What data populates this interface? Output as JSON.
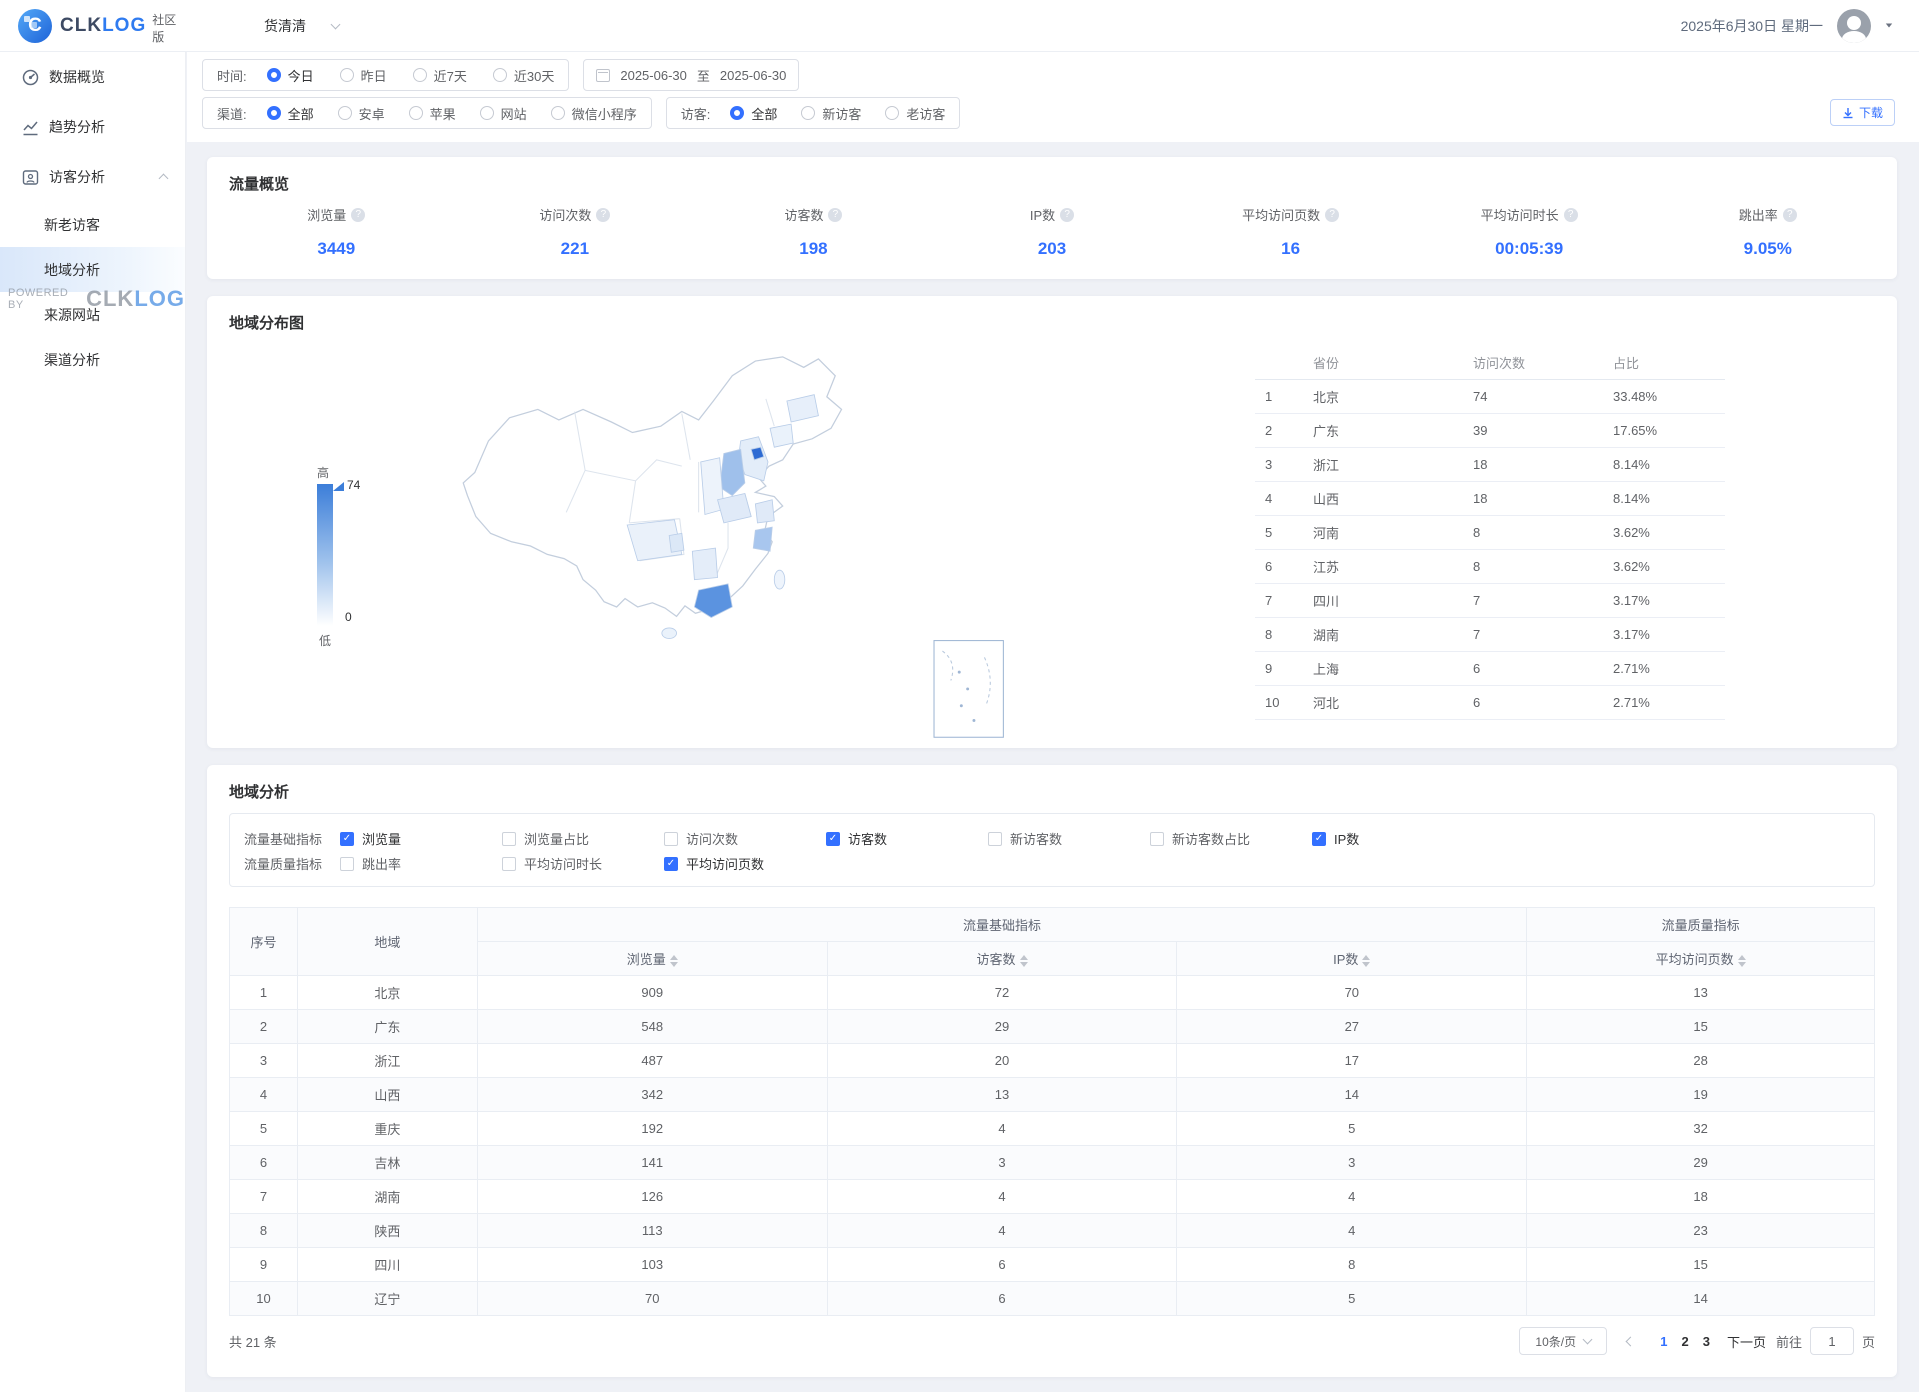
{
  "header": {
    "logo_text_1": "CLK",
    "logo_text_2": "LOG",
    "edition": "社区版",
    "project_selector": "货清清",
    "date_display": "2025年6月30日 星期一"
  },
  "sidebar": {
    "watermark_prefix": "POWERED BY",
    "watermark_logo_1": "CLK",
    "watermark_logo_2": "LOG",
    "items": [
      {
        "label": "数据概览"
      },
      {
        "label": "趋势分析"
      },
      {
        "label": "访客分析"
      },
      {
        "label": "新老访客"
      },
      {
        "label": "地域分析"
      },
      {
        "label": "来源网站"
      },
      {
        "label": "渠道分析"
      }
    ]
  },
  "filters": {
    "time": {
      "label": "时间:",
      "options": [
        {
          "label": "今日",
          "selected": true
        },
        {
          "label": "昨日",
          "selected": false
        },
        {
          "label": "近7天",
          "selected": false
        },
        {
          "label": "近30天",
          "selected": false
        }
      ]
    },
    "range": {
      "start": "2025-06-30",
      "to": "至",
      "end": "2025-06-30"
    },
    "channel": {
      "label": "渠道:",
      "options": [
        {
          "label": "全部",
          "selected": true
        },
        {
          "label": "安卓",
          "selected": false
        },
        {
          "label": "苹果",
          "selected": false
        },
        {
          "label": "网站",
          "selected": false
        },
        {
          "label": "微信小程序",
          "selected": false
        }
      ]
    },
    "visitor": {
      "label": "访客:",
      "options": [
        {
          "label": "全部",
          "selected": true
        },
        {
          "label": "新访客",
          "selected": false
        },
        {
          "label": "老访客",
          "selected": false
        }
      ]
    },
    "download_label": "下载"
  },
  "overview": {
    "title": "流量概览",
    "metrics": [
      {
        "label": "浏览量",
        "value": "3449"
      },
      {
        "label": "访问次数",
        "value": "221"
      },
      {
        "label": "访客数",
        "value": "198"
      },
      {
        "label": "IP数",
        "value": "203"
      },
      {
        "label": "平均访问页数",
        "value": "16"
      },
      {
        "label": "平均访问时长",
        "value": "00:05:39"
      },
      {
        "label": "跳出率",
        "value": "9.05%"
      }
    ]
  },
  "map_section": {
    "title": "地域分布图",
    "legend": {
      "high": "高",
      "low": "低",
      "max": "74",
      "min": "0"
    },
    "table": {
      "headers": [
        "省份",
        "访问次数",
        "占比"
      ],
      "rows": [
        [
          "1",
          "北京",
          "74",
          "33.48%"
        ],
        [
          "2",
          "广东",
          "39",
          "17.65%"
        ],
        [
          "3",
          "浙江",
          "18",
          "8.14%"
        ],
        [
          "4",
          "山西",
          "18",
          "8.14%"
        ],
        [
          "5",
          "河南",
          "8",
          "3.62%"
        ],
        [
          "6",
          "江苏",
          "8",
          "3.62%"
        ],
        [
          "7",
          "四川",
          "7",
          "3.17%"
        ],
        [
          "8",
          "湖南",
          "7",
          "3.17%"
        ],
        [
          "9",
          "上海",
          "6",
          "2.71%"
        ],
        [
          "10",
          "河北",
          "6",
          "2.71%"
        ]
      ]
    }
  },
  "analysis": {
    "title": "地域分析",
    "metric_groups": [
      {
        "label": "流量基础指标",
        "options": [
          {
            "label": "浏览量",
            "checked": true
          },
          {
            "label": "浏览量占比",
            "checked": false
          },
          {
            "label": "访问次数",
            "checked": false
          },
          {
            "label": "访客数",
            "checked": true
          },
          {
            "label": "新访客数",
            "checked": false
          },
          {
            "label": "新访客数占比",
            "checked": false
          },
          {
            "label": "IP数",
            "checked": true
          }
        ]
      },
      {
        "label": "流量质量指标",
        "options": [
          {
            "label": "跳出率",
            "checked": false
          },
          {
            "label": "平均访问时长",
            "checked": false
          },
          {
            "label": "平均访问页数",
            "checked": true
          }
        ]
      }
    ],
    "table": {
      "col_index": "序号",
      "col_region": "地域",
      "group_basic": "流量基础指标",
      "group_quality": "流量质量指标",
      "sub_headers": [
        "浏览量",
        "访客数",
        "IP数",
        "平均访问页数"
      ],
      "rows": [
        [
          "1",
          "北京",
          "909",
          "72",
          "70",
          "13"
        ],
        [
          "2",
          "广东",
          "548",
          "29",
          "27",
          "15"
        ],
        [
          "3",
          "浙江",
          "487",
          "20",
          "17",
          "28"
        ],
        [
          "4",
          "山西",
          "342",
          "13",
          "14",
          "19"
        ],
        [
          "5",
          "重庆",
          "192",
          "4",
          "5",
          "32"
        ],
        [
          "6",
          "吉林",
          "141",
          "3",
          "3",
          "29"
        ],
        [
          "7",
          "湖南",
          "126",
          "4",
          "4",
          "18"
        ],
        [
          "8",
          "陕西",
          "113",
          "4",
          "4",
          "23"
        ],
        [
          "9",
          "四川",
          "103",
          "6",
          "8",
          "15"
        ],
        [
          "10",
          "辽宁",
          "70",
          "6",
          "5",
          "14"
        ]
      ]
    },
    "pagination": {
      "total": "共 21 条",
      "page_size": "10条/页",
      "pages": [
        {
          "label": "1",
          "active": true
        },
        {
          "label": "2",
          "active": false
        },
        {
          "label": "3",
          "active": false
        }
      ],
      "next": "下一页",
      "goto": "前往",
      "goto_value": "1",
      "page_unit": "页"
    }
  }
}
